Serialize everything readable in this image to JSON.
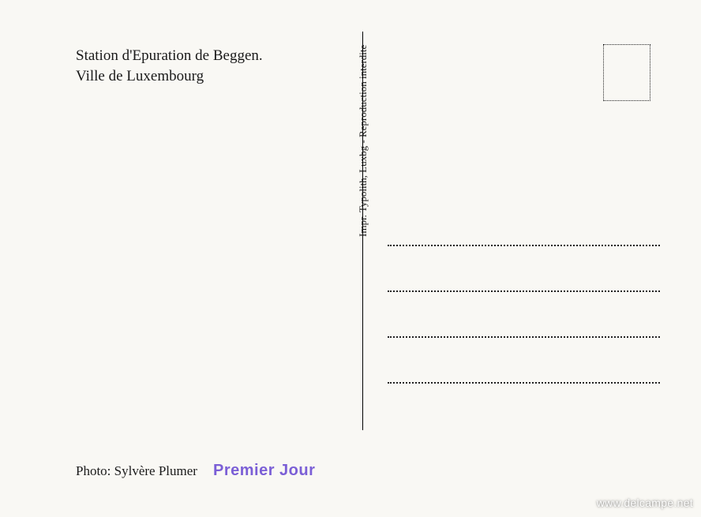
{
  "caption": {
    "line1": "Station d'Epuration de Beggen.",
    "line2": "Ville de Luxembourg"
  },
  "photo_credit": "Photo: Sylvère Plumer",
  "premier_jour": "Premier Jour",
  "vertical_text": "Impr. Typolith, Luxbg    -    Reproduction interdite",
  "watermark": "www.delcampe.net",
  "colors": {
    "paper": "#f9f8f4",
    "ink": "#1a1a1a",
    "stamp": "#7b5fd6"
  }
}
